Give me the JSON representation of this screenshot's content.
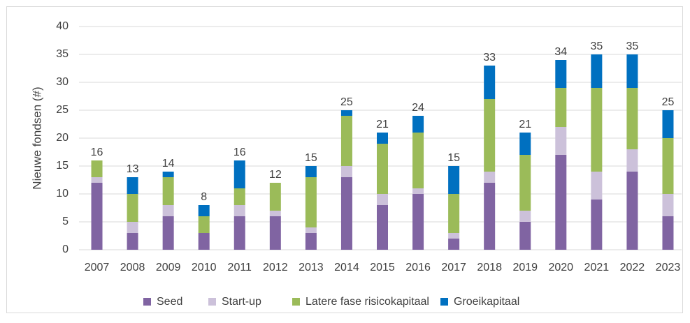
{
  "chart_data": {
    "type": "stacked_bar",
    "ylabel": "Nieuwe fondsen (#)",
    "categories": [
      "2007",
      "2008",
      "2009",
      "2010",
      "2011",
      "2012",
      "2013",
      "2014",
      "2015",
      "2016",
      "2017",
      "2018",
      "2019",
      "2020",
      "2021",
      "2022",
      "2023"
    ],
    "series": [
      {
        "name": "Seed",
        "color": "#8064a2",
        "values": [
          12,
          3,
          6,
          3,
          6,
          6,
          3,
          13,
          8,
          10,
          2,
          12,
          5,
          17,
          9,
          14,
          6
        ]
      },
      {
        "name": "Start-up",
        "color": "#ccc1da",
        "values": [
          1,
          2,
          2,
          0,
          2,
          1,
          1,
          2,
          2,
          1,
          1,
          2,
          2,
          5,
          5,
          4,
          4
        ]
      },
      {
        "name": "Latere fase risicokapitaal",
        "color": "#9bbb59",
        "values": [
          3,
          5,
          5,
          3,
          3,
          5,
          9,
          9,
          9,
          10,
          7,
          13,
          10,
          7,
          15,
          11,
          10
        ]
      },
      {
        "name": "Groeikapitaal",
        "color": "#0070c0",
        "values": [
          0,
          3,
          1,
          2,
          5,
          0,
          2,
          1,
          2,
          3,
          5,
          6,
          4,
          5,
          6,
          6,
          5
        ]
      }
    ],
    "totals": [
      16,
      13,
      14,
      8,
      16,
      12,
      15,
      25,
      21,
      24,
      15,
      33,
      21,
      34,
      35,
      35,
      25
    ],
    "ylim": [
      0,
      40
    ],
    "yticks": [
      0,
      5,
      10,
      15,
      20,
      25,
      30,
      35,
      40
    ],
    "grid": true,
    "legend": "bottom"
  }
}
